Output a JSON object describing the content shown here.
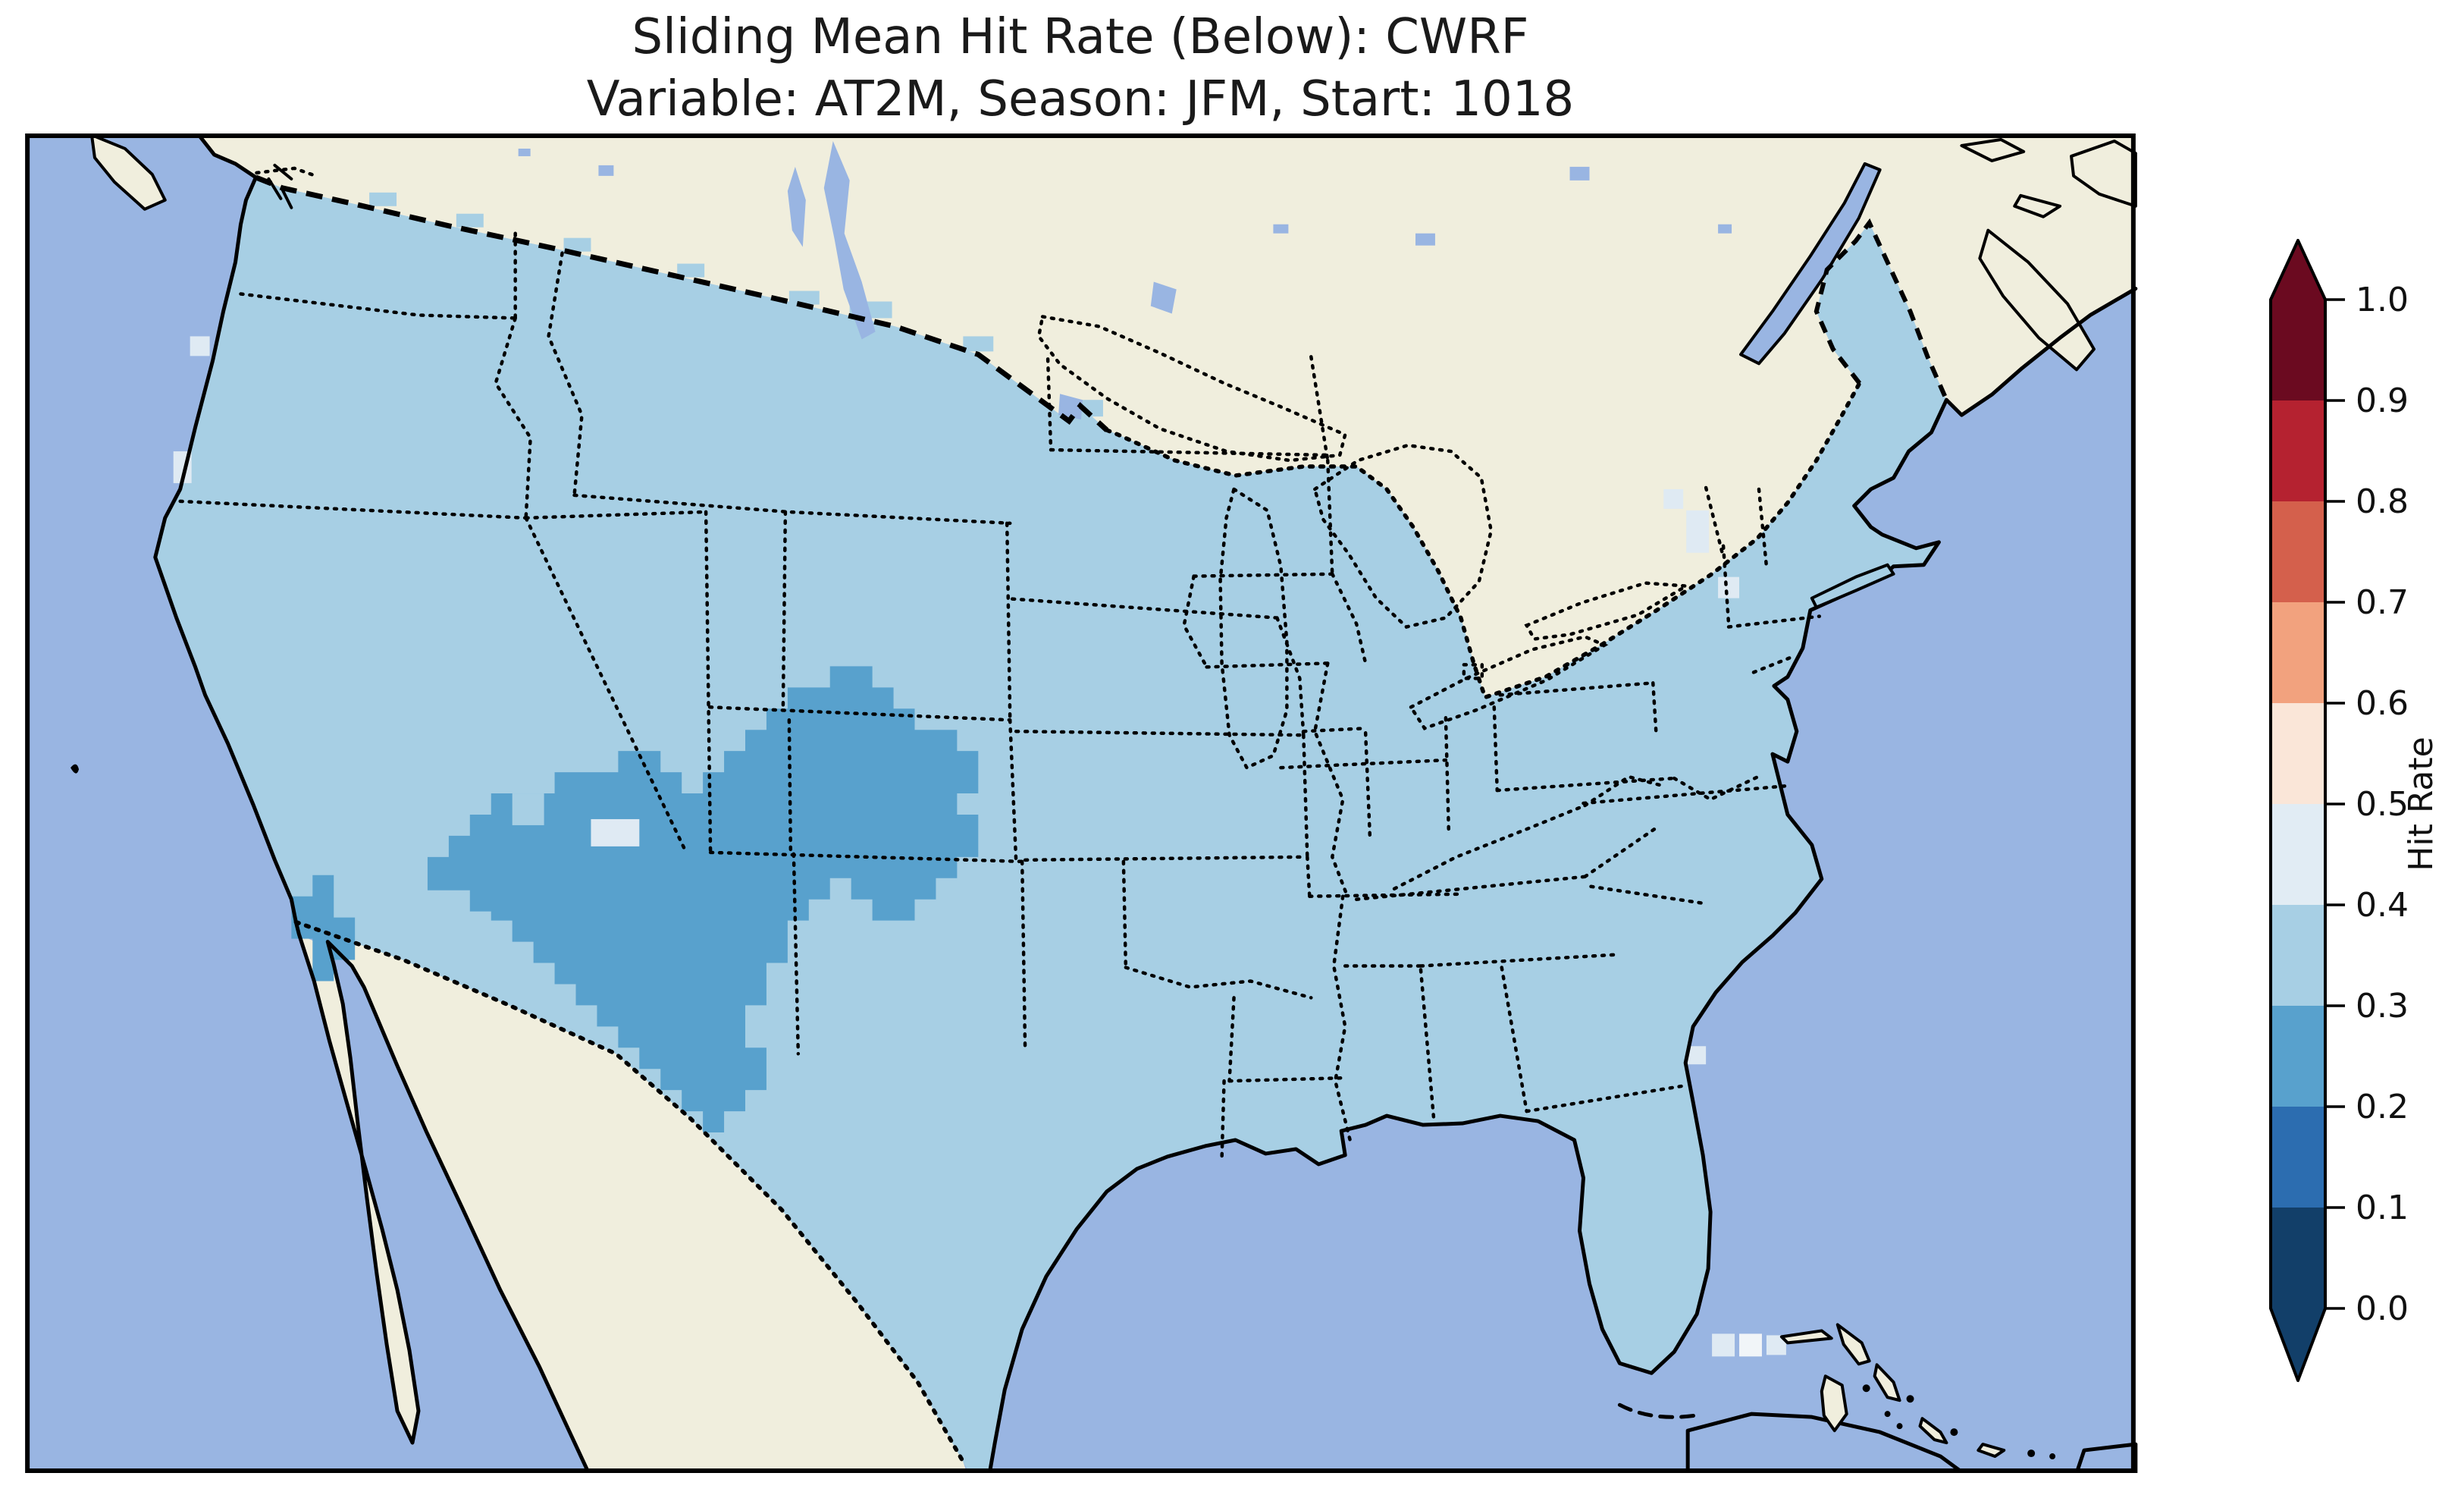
{
  "figure": {
    "title_line1": "Sliding Mean Hit Rate (Below): CWRF",
    "title_line2": "Variable: AT2M, Season: JFM, Start: 1018"
  },
  "chart_data": {
    "type": "heatmap",
    "title": "Sliding Mean Hit Rate (Below): CWRF",
    "subtitle": "Variable: AT2M, Season: JFM, Start: 1018",
    "model": "CWRF",
    "variable": "AT2M",
    "season": "JFM",
    "start": "1018",
    "region": "Continental United States (Lambert-conformal style map with Canada, Mexico, Great Lakes, Cuba and Bahamas visible)",
    "colorbar": {
      "label": "Hit Rate",
      "orientation": "vertical",
      "extend": "both",
      "range": [
        0.0,
        1.0
      ],
      "tick_labels": [
        "1.0",
        "0.9",
        "0.8",
        "0.7",
        "0.6",
        "0.5",
        "0.4",
        "0.3",
        "0.2",
        "0.1",
        "0.0"
      ],
      "bins_top_to_bottom": [
        {
          "range": [
            0.9,
            1.0
          ],
          "color": "#6b0a20"
        },
        {
          "range": [
            0.8,
            0.9
          ],
          "color": "#b52230"
        },
        {
          "range": [
            0.7,
            0.8
          ],
          "color": "#d4604c"
        },
        {
          "range": [
            0.6,
            0.7
          ],
          "color": "#f2a27e"
        },
        {
          "range": [
            0.5,
            0.6
          ],
          "color": "#fae6d8"
        },
        {
          "range": [
            0.4,
            0.5
          ],
          "color": "#e1ecf4"
        },
        {
          "range": [
            0.3,
            0.4
          ],
          "color": "#a7cfe4"
        },
        {
          "range": [
            0.2,
            0.3
          ],
          "color": "#58a1cd"
        },
        {
          "range": [
            0.1,
            0.2
          ],
          "color": "#2c6db0"
        },
        {
          "range": [
            0.0,
            0.1
          ],
          "color": "#123f69"
        }
      ],
      "arrow_over_color": "#6b0a20",
      "arrow_under_color": "#123f69"
    },
    "map_values_summary": {
      "dominant_bin": [
        0.3,
        0.4
      ],
      "dominant_coverage": "nearly all of the continental US",
      "low_bin": [
        0.2,
        0.3
      ],
      "low_bin_location": "blocky region over Arizona, New Mexico, southern Utah, Colorado and western Kansas, plus a small patch at the California–Arizona border",
      "scattered_pale_bin": [
        0.4,
        0.5
      ],
      "scattered_pale_locations": "isolated cells near the Pacific Northwest coast, northern New England, the Georgia coast, and a few cells (one near-white) in the ocean south of Florida"
    },
    "legend_position": "right",
    "grid": false
  },
  "palette": {
    "ocean": "#99b5e2",
    "land_non_us": "#f0eedd",
    "us_fill": "#a7cfe4",
    "low_fill": "#58a1cd",
    "pale_fill": "#dfeaf3",
    "pale_white": "#f1f5f8",
    "coastline": "#000000"
  }
}
